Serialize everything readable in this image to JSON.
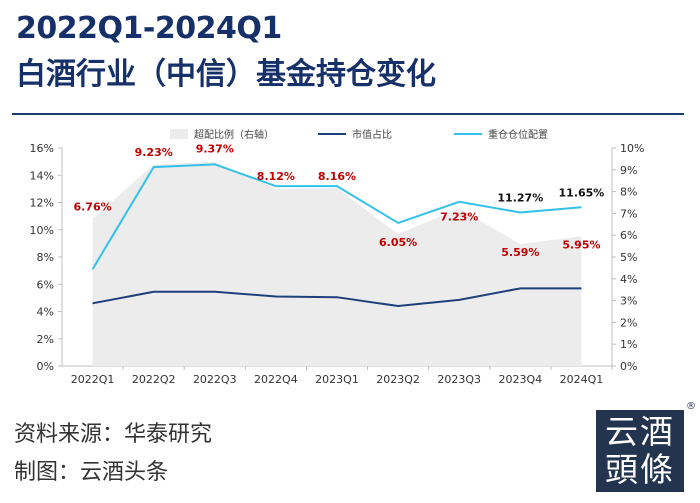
{
  "header": {
    "title_line1": "2022Q1-2024Q1",
    "title_line2": "白酒行业（中信）基金持仓变化"
  },
  "footer": {
    "source": "资料来源：华泰研究",
    "author": "制图：云酒头条"
  },
  "logo": {
    "line1": "云酒",
    "line2": "頭條",
    "mark": "®"
  },
  "colors": {
    "title": "#16306a",
    "area": "#ececec",
    "market_cap_line": "#1f3f7a",
    "holdings_line": "#33c1ea",
    "label_red": "#c00000",
    "label_black": "#111111"
  },
  "chart_data": {
    "type": "line",
    "categories": [
      "2022Q1",
      "2022Q2",
      "2022Q3",
      "2022Q4",
      "2023Q1",
      "2023Q2",
      "2023Q3",
      "2023Q4",
      "2024Q1"
    ],
    "left_axis": {
      "ylim": [
        0,
        16
      ],
      "ticks": [
        "0%",
        "2%",
        "4%",
        "6%",
        "8%",
        "10%",
        "12%",
        "14%",
        "16%"
      ]
    },
    "right_axis": {
      "ylim": [
        0,
        10
      ],
      "ticks": [
        "0%",
        "1%",
        "2%",
        "3%",
        "4%",
        "5%",
        "6%",
        "7%",
        "8%",
        "9%",
        "10%"
      ]
    },
    "series": [
      {
        "name": "超配比例（右轴）",
        "kind": "area",
        "axis": "right",
        "values": [
          6.76,
          9.23,
          9.37,
          8.12,
          8.16,
          6.05,
          7.23,
          5.59,
          5.95
        ],
        "labels": [
          "6.76%",
          "9.23%",
          "9.37%",
          "8.12%",
          "8.16%",
          "6.05%",
          "7.23%",
          "5.59%",
          "5.95%"
        ],
        "label_color": "red"
      },
      {
        "name": "市值占比",
        "kind": "line",
        "axis": "left",
        "values": [
          4.6,
          5.45,
          5.45,
          5.1,
          5.05,
          4.4,
          4.85,
          5.7,
          5.7
        ]
      },
      {
        "name": "重仓仓位配置",
        "kind": "line",
        "axis": "left",
        "values": [
          7.1,
          14.6,
          14.8,
          13.2,
          13.2,
          10.5,
          12.05,
          11.27,
          11.65
        ],
        "labels": [
          null,
          null,
          null,
          null,
          null,
          null,
          null,
          "11.27%",
          "11.65%"
        ],
        "label_color": "black"
      }
    ]
  }
}
